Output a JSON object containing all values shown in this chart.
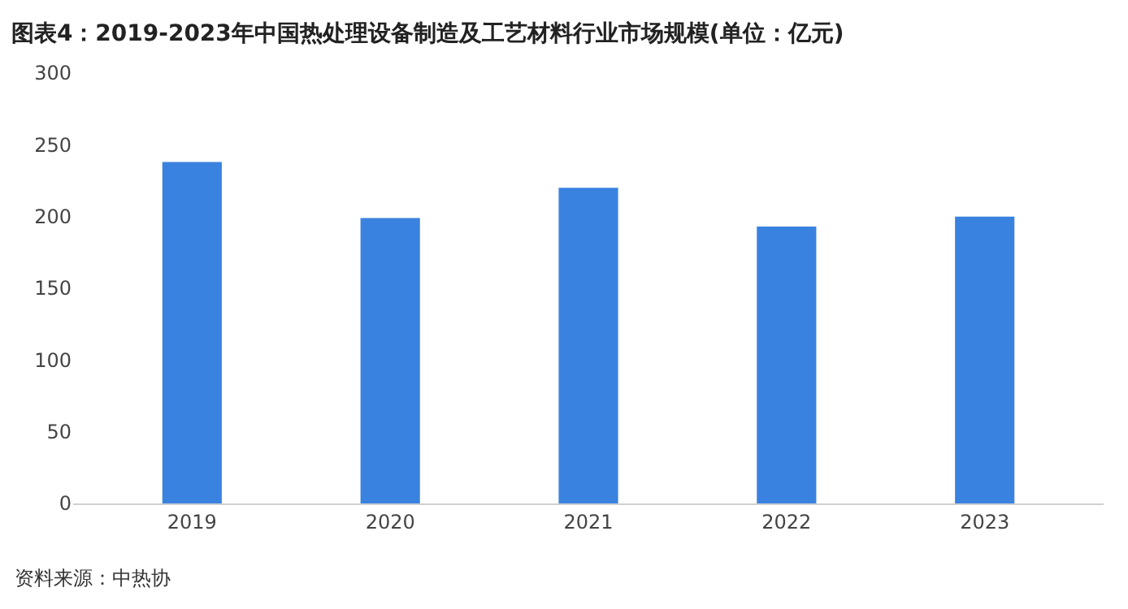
{
  "chart_data": {
    "type": "bar",
    "title": "图表4：2019-2023年中国热处理设备制造及工艺材料行业市场规模(单位：亿元)",
    "categories": [
      "2019",
      "2020",
      "2021",
      "2022",
      "2023"
    ],
    "values": [
      238,
      199,
      220,
      193,
      200
    ],
    "color": "#3a82e0",
    "ylim": [
      0,
      300
    ],
    "yticks": [
      0,
      50,
      100,
      150,
      200,
      250,
      300
    ],
    "grid": false,
    "annotations": [
      "资料来源：中热协"
    ]
  }
}
